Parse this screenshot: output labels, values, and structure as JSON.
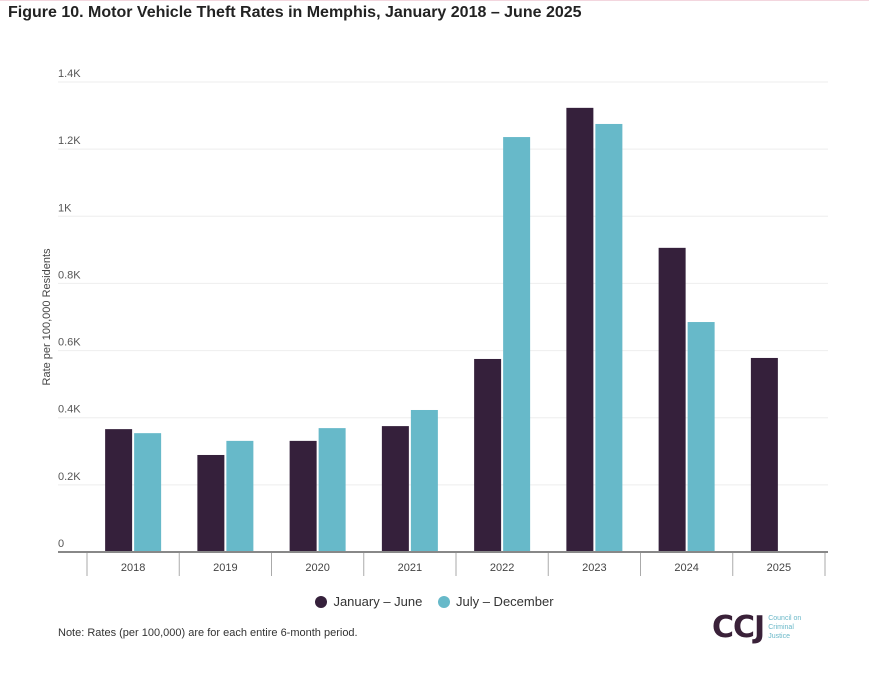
{
  "title": "Figure 10. Motor Vehicle Theft Rates in Memphis, January 2018 – June 2025",
  "note": "Note: Rates (per 100,000) are for each entire 6-month period.",
  "logo": {
    "mark": "CCJ",
    "subtitle_lines": [
      "Council on",
      "Criminal",
      "Justice"
    ]
  },
  "chart_data": {
    "type": "bar",
    "title": "Figure 10. Motor Vehicle Theft Rates in Memphis, January 2018 – June 2025",
    "xlabel": "",
    "ylabel": "Rate per 100,000 Residents",
    "categories": [
      "2018",
      "2019",
      "2020",
      "2021",
      "2022",
      "2023",
      "2024",
      "2025"
    ],
    "series": [
      {
        "name": "January – June",
        "color": "#35203b",
        "values": [
          366,
          289,
          331,
          375,
          575,
          1323,
          906,
          578
        ]
      },
      {
        "name": "July – December",
        "color": "#67b9c9",
        "values": [
          354,
          331,
          369,
          423,
          1236,
          1275,
          685,
          null
        ]
      }
    ],
    "ylim": [
      0,
      1400
    ],
    "yticks": [
      0,
      200,
      400,
      600,
      800,
      1000,
      1200,
      1400
    ],
    "ytick_labels": [
      "0",
      "0.2K",
      "0.4K",
      "0.6K",
      "0.8K",
      "1K",
      "1.2K",
      "1.4K"
    ],
    "grid": true,
    "legend_position": "bottom"
  }
}
